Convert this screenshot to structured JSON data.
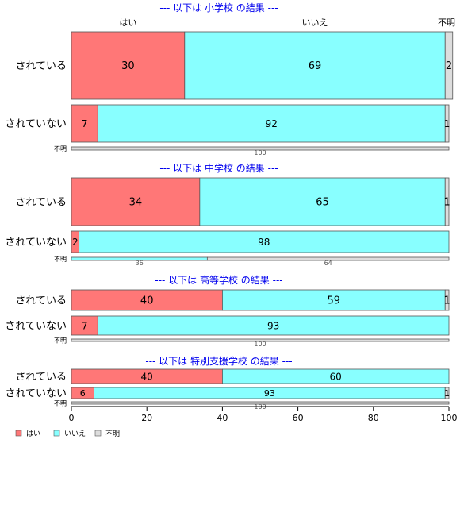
{
  "chart_data": {
    "type": "bar",
    "orientation": "horizontal",
    "stacked": "percent",
    "colors": {
      "yes": "#ff7777",
      "no": "#88ffff",
      "unknown": "#dddddd"
    },
    "column_headers": [
      "はい",
      "いいえ",
      "不明"
    ],
    "panels": [
      {
        "title": "--- 以下は 小学校 の結果 ---",
        "rows": [
          {
            "label": "されている",
            "values": [
              30,
              69,
              2
            ]
          },
          {
            "label": "されていない",
            "values": [
              7,
              92,
              1
            ]
          },
          {
            "label": "不明",
            "values": [
              0,
              0,
              100
            ]
          }
        ]
      },
      {
        "title": "--- 以下は 中学校 の結果 ---",
        "rows": [
          {
            "label": "されている",
            "values": [
              34,
              65,
              1
            ]
          },
          {
            "label": "されていない",
            "values": [
              2,
              98,
              0
            ]
          },
          {
            "label": "不明",
            "values": [
              0,
              36,
              64
            ]
          }
        ]
      },
      {
        "title": "--- 以下は 高等学校 の結果 ---",
        "rows": [
          {
            "label": "されている",
            "values": [
              40,
              59,
              1
            ]
          },
          {
            "label": "されていない",
            "values": [
              7,
              93,
              0
            ]
          },
          {
            "label": "不明",
            "values": [
              0,
              0,
              100
            ]
          }
        ]
      },
      {
        "title": "--- 以下は 特別支援学校 の結果 ---",
        "rows": [
          {
            "label": "されている",
            "values": [
              40,
              60,
              0
            ]
          },
          {
            "label": "されていない",
            "values": [
              6,
              93,
              1
            ]
          },
          {
            "label": "不明",
            "values": [
              0,
              0,
              100
            ]
          }
        ]
      }
    ],
    "xlim": [
      0,
      100
    ],
    "xticks": [
      0,
      20,
      40,
      60,
      80,
      100
    ],
    "legend": {
      "position": "bottom-left",
      "items": [
        "はい",
        "いいえ",
        "不明"
      ]
    }
  }
}
